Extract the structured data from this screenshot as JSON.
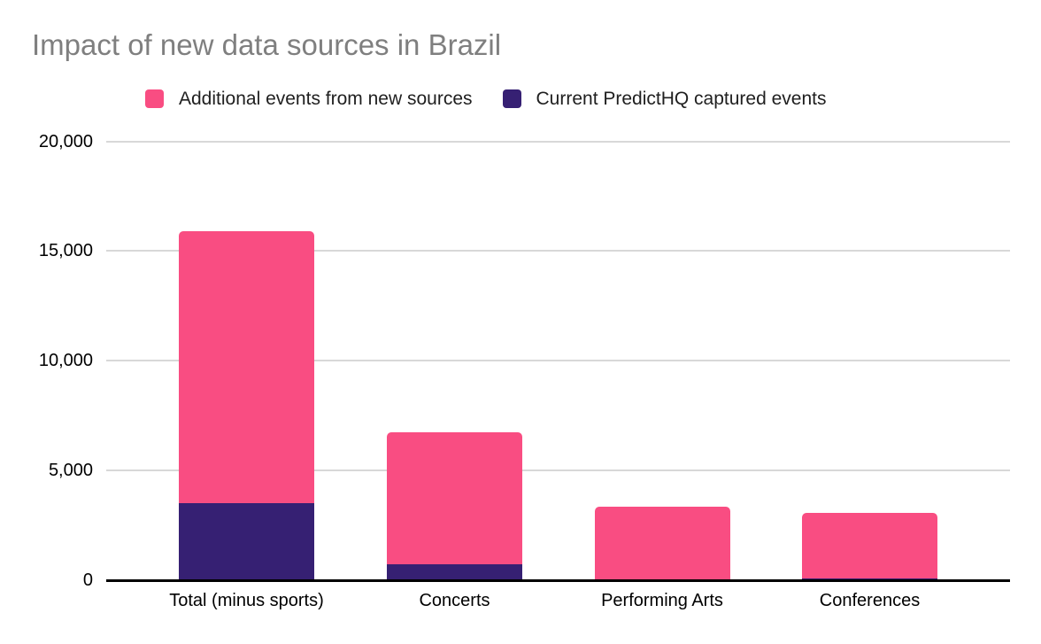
{
  "title": "Impact of new data sources in Brazil",
  "legend": [
    {
      "label": "Additional events from new sources",
      "color": "#F94D82"
    },
    {
      "label": "Current PredictHQ captured events",
      "color": "#362073"
    }
  ],
  "colors": {
    "additional_pink": "#F94D82",
    "current_purple": "#362073",
    "title_gray": "#7F7F7F",
    "gridline_gray": "#D8D8D8",
    "axis_black": "#000000"
  },
  "chart_data": {
    "type": "bar",
    "stacked": true,
    "title": "Impact of new data sources in Brazil",
    "categories": [
      "Total (minus sports)",
      "Concerts",
      "Performing Arts",
      "Conferences"
    ],
    "series": [
      {
        "name": "Current PredictHQ captured events",
        "color": "#362073",
        "values": [
          3500,
          730,
          0,
          100
        ]
      },
      {
        "name": "Additional events from new sources",
        "color": "#F94D82",
        "values": [
          12400,
          6000,
          3350,
          2960
        ]
      }
    ],
    "stack_totals": [
      15900,
      6730,
      3350,
      3060
    ],
    "xlabel": "",
    "ylabel": "",
    "ylim": [
      0,
      20000
    ],
    "yticks": [
      0,
      5000,
      10000,
      15000,
      20000
    ],
    "ytick_labels": [
      "0",
      "5,000",
      "10,000",
      "15,000",
      "20,000"
    ],
    "grid": true,
    "legend_position": "top"
  }
}
